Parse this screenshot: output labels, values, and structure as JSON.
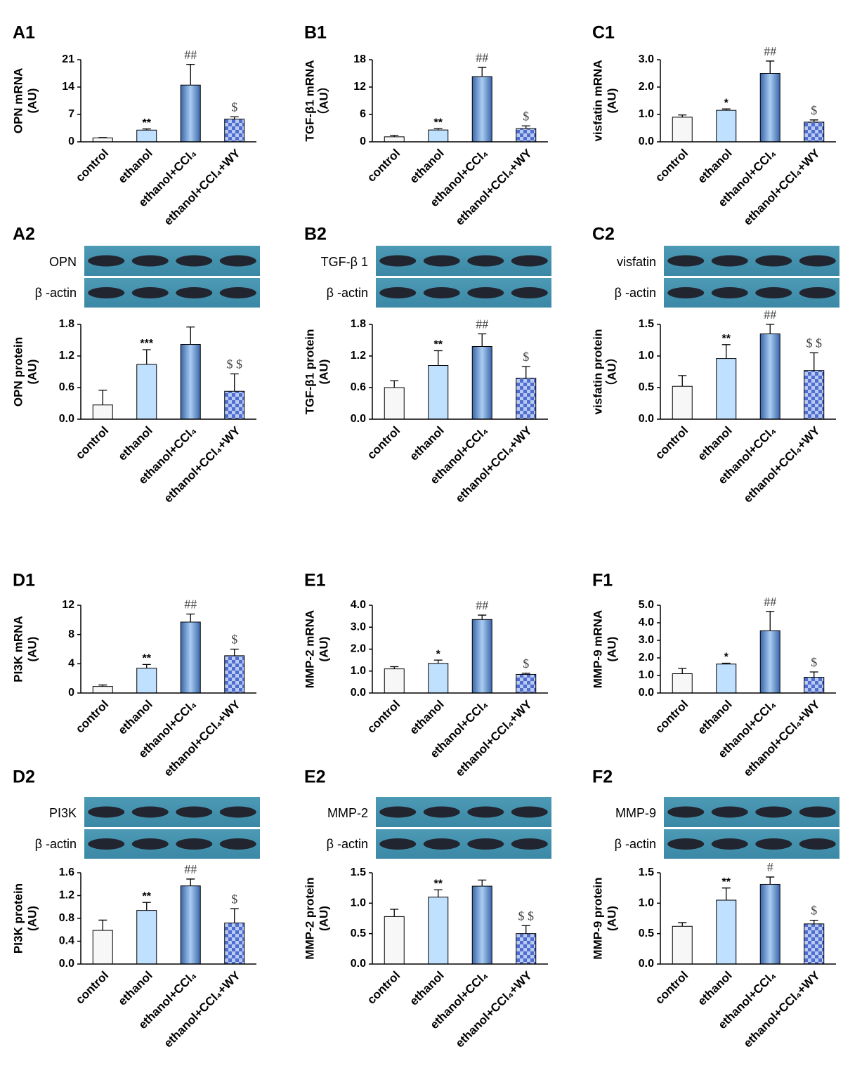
{
  "chart_data": [
    {
      "type": "bar",
      "panel": "A1",
      "ylabel": [
        "OPN  mRNA",
        "(AU)"
      ],
      "categories": [
        "control",
        "ethanol",
        "ethanol+CCl₄",
        "ethanol+CCl₄+WY"
      ],
      "values": [
        1,
        3,
        14.5,
        5.8
      ],
      "errors": [
        0.1,
        0.3,
        5.3,
        0.6
      ],
      "fills": [
        "plain-white",
        "plain-light-blue",
        "gradient-blue",
        "checker-blue"
      ],
      "ylim": [
        0,
        21
      ],
      "yticks": [
        0,
        7,
        14,
        21
      ],
      "annotations": [
        {
          "category": "ethanol",
          "text": "**"
        },
        {
          "category": "ethanol+CCl₄",
          "text": "##"
        },
        {
          "category": "ethanol+CCl₄+WY",
          "text": "$"
        }
      ]
    },
    {
      "type": "bar",
      "panel": "B1",
      "ylabel": [
        "TGF-β1 mRNA",
        "（AU）"
      ],
      "categories": [
        "control",
        "ethanol",
        "ethanol+CCl₄",
        "ethanol+CCl₄+WY"
      ],
      "values": [
        1.1,
        2.6,
        14.3,
        2.9
      ],
      "errors": [
        0.3,
        0.3,
        2,
        0.6
      ],
      "fills": [
        "plain-white",
        "plain-light-blue",
        "gradient-blue",
        "checker-blue"
      ],
      "ylim": [
        0,
        18
      ],
      "yticks": [
        0,
        6,
        12,
        18
      ],
      "annotations": [
        {
          "category": "ethanol",
          "text": "**"
        },
        {
          "category": "ethanol+CCl₄",
          "text": "##"
        },
        {
          "category": "ethanol+CCl₄+WY",
          "text": "$"
        }
      ]
    },
    {
      "type": "bar",
      "panel": "C1",
      "ylabel": [
        "visfatin  mRNA",
        "(AU)"
      ],
      "categories": [
        "control",
        "ethanol",
        "ethanol+CCl₄",
        "ethanol+CCl₄+WY"
      ],
      "values": [
        0.9,
        1.15,
        2.5,
        0.72
      ],
      "errors": [
        0.08,
        0.05,
        0.45,
        0.08
      ],
      "fills": [
        "plain-white",
        "plain-light-blue",
        "gradient-blue",
        "checker-blue"
      ],
      "ylim": [
        0,
        3
      ],
      "yticks": [
        {
          "value": 0,
          "label": "0.0"
        },
        {
          "value": 1,
          "label": "1.0"
        },
        {
          "value": 2,
          "label": "2.0"
        },
        {
          "value": 3,
          "label": "3.0"
        }
      ],
      "annotations": [
        {
          "category": "ethanol",
          "text": "*"
        },
        {
          "category": "ethanol+CCl₄",
          "text": "##"
        },
        {
          "category": "ethanol+CCl₄+WY",
          "text": "$"
        }
      ]
    },
    {
      "type": "bar",
      "panel": "A2",
      "blot": {
        "target": "OPN",
        "reference": "β -actin"
      },
      "ylabel": [
        "OPN  protein",
        "(AU)"
      ],
      "categories": [
        "control",
        "ethanol",
        "ethanol+CCl₄",
        "ethanol+CCl₄+WY"
      ],
      "values": [
        0.27,
        1.04,
        1.42,
        0.53
      ],
      "errors": [
        0.28,
        0.28,
        0.33,
        0.33
      ],
      "fills": [
        "plain-white",
        "plain-light-blue",
        "gradient-blue",
        "checker-blue"
      ],
      "ylim": [
        0,
        1.8
      ],
      "yticks": [
        {
          "value": 0,
          "label": "0.0"
        },
        0.6,
        1.2,
        1.8
      ],
      "annotations": [
        {
          "category": "ethanol",
          "text": "***"
        },
        {
          "category": "ethanol+CCl₄+WY",
          "text": "$ $"
        }
      ]
    },
    {
      "type": "bar",
      "panel": "B2",
      "blot": {
        "target": "TGF-β 1",
        "reference": "β -actin"
      },
      "ylabel": [
        "TGF-β1 protein",
        "(AU)"
      ],
      "categories": [
        "control",
        "ethanol",
        "ethanol+CCl₄",
        "ethanol+CCl₄+WY"
      ],
      "values": [
        0.6,
        1.02,
        1.38,
        0.78
      ],
      "errors": [
        0.13,
        0.28,
        0.24,
        0.22
      ],
      "fills": [
        "plain-white",
        "plain-light-blue",
        "gradient-blue",
        "checker-blue"
      ],
      "ylim": [
        0,
        1.8
      ],
      "yticks": [
        {
          "value": 0,
          "label": "0.0"
        },
        0.6,
        1.2,
        1.8
      ],
      "annotations": [
        {
          "category": "ethanol",
          "text": "**"
        },
        {
          "category": "ethanol+CCl₄",
          "text": "##"
        },
        {
          "category": "ethanol+CCl₄+WY",
          "text": "$"
        }
      ]
    },
    {
      "type": "bar",
      "panel": "C2",
      "blot": {
        "target": "visfatin",
        "reference": "β -actin"
      },
      "ylabel": [
        "visfatin  protein",
        "（AU）"
      ],
      "categories": [
        "control",
        "ethanol",
        "ethanol+CCl₄",
        "ethanol+CCl₄+WY"
      ],
      "values": [
        0.52,
        0.96,
        1.35,
        0.77
      ],
      "errors": [
        0.17,
        0.22,
        0.15,
        0.28
      ],
      "fills": [
        "plain-white",
        "plain-light-blue",
        "gradient-blue",
        "checker-blue"
      ],
      "ylim": [
        0,
        1.5
      ],
      "yticks": [
        {
          "value": 0,
          "label": "0.0"
        },
        0.5,
        {
          "value": 1,
          "label": "1.0"
        },
        1.5
      ],
      "annotations": [
        {
          "category": "ethanol",
          "text": "**"
        },
        {
          "category": "ethanol+CCl₄",
          "text": "##"
        },
        {
          "category": "ethanol+CCl₄+WY",
          "text": "$ $"
        }
      ]
    },
    {
      "type": "bar",
      "panel": "D1",
      "ylabel": [
        "PI3K  mRNA",
        "(AU)"
      ],
      "categories": [
        "control",
        "ethanol",
        "ethanol+CCl₄",
        "ethanol+CCl₄+WY"
      ],
      "values": [
        0.9,
        3.4,
        9.7,
        5.1
      ],
      "errors": [
        0.2,
        0.5,
        1.1,
        0.9
      ],
      "fills": [
        "plain-white",
        "plain-light-blue",
        "gradient-blue",
        "checker-blue"
      ],
      "ylim": [
        0,
        12
      ],
      "yticks": [
        0,
        4,
        8,
        12
      ],
      "annotations": [
        {
          "category": "ethanol",
          "text": "**"
        },
        {
          "category": "ethanol+CCl₄",
          "text": "##"
        },
        {
          "category": "ethanol+CCl₄+WY",
          "text": "$"
        }
      ]
    },
    {
      "type": "bar",
      "panel": "E1",
      "ylabel": [
        "MMP-2  mRNA",
        "(AU)"
      ],
      "categories": [
        "control",
        "ethanol",
        "ethanol+CCl₄",
        "ethanol+CCl₄+WY"
      ],
      "values": [
        1.1,
        1.35,
        3.35,
        0.85
      ],
      "errors": [
        0.1,
        0.15,
        0.2,
        0.05
      ],
      "fills": [
        "plain-white",
        "plain-light-blue",
        "gradient-blue",
        "checker-blue"
      ],
      "ylim": [
        0,
        4
      ],
      "yticks": [
        {
          "value": 0,
          "label": "0.0"
        },
        {
          "value": 1,
          "label": "1.0"
        },
        {
          "value": 2,
          "label": "2.0"
        },
        {
          "value": 3,
          "label": "3.0"
        },
        {
          "value": 4,
          "label": "4.0"
        }
      ],
      "annotations": [
        {
          "category": "ethanol",
          "text": "*"
        },
        {
          "category": "ethanol+CCl₄",
          "text": "##"
        },
        {
          "category": "ethanol+CCl₄+WY",
          "text": "$"
        }
      ]
    },
    {
      "type": "bar",
      "panel": "F1",
      "ylabel": [
        "MMP-9  mRNA",
        "(AU)"
      ],
      "categories": [
        "control",
        "ethanol",
        "ethanol+CCl₄",
        "ethanol+CCl₄+WY"
      ],
      "values": [
        1.1,
        1.65,
        3.55,
        0.9
      ],
      "errors": [
        0.3,
        0.05,
        1.1,
        0.3
      ],
      "fills": [
        "plain-white",
        "plain-light-blue",
        "gradient-blue",
        "checker-blue"
      ],
      "ylim": [
        0,
        5
      ],
      "yticks": [
        {
          "value": 0,
          "label": "0.0"
        },
        {
          "value": 1,
          "label": "1.0"
        },
        {
          "value": 2,
          "label": "2.0"
        },
        {
          "value": 3,
          "label": "3.0"
        },
        {
          "value": 4,
          "label": "4.0"
        },
        {
          "value": 5,
          "label": "5.0"
        }
      ],
      "annotations": [
        {
          "category": "ethanol",
          "text": "*"
        },
        {
          "category": "ethanol+CCl₄",
          "text": "##"
        },
        {
          "category": "ethanol+CCl₄+WY",
          "text": "$"
        }
      ]
    },
    {
      "type": "bar",
      "panel": "D2",
      "blot": {
        "target": "PI3K",
        "reference": "β -actin"
      },
      "ylabel": [
        "PI3K  protein",
        "(AU)"
      ],
      "categories": [
        "control",
        "ethanol",
        "ethanol+CCl₄",
        "ethanol+CCl₄+WY"
      ],
      "values": [
        0.59,
        0.94,
        1.37,
        0.72
      ],
      "errors": [
        0.18,
        0.14,
        0.12,
        0.25
      ],
      "fills": [
        "plain-white",
        "plain-light-blue",
        "gradient-blue",
        "checker-blue"
      ],
      "ylim": [
        0,
        1.6
      ],
      "yticks": [
        {
          "value": 0,
          "label": "0.0"
        },
        0.4,
        0.8,
        1.2,
        1.6
      ],
      "annotations": [
        {
          "category": "ethanol",
          "text": "**"
        },
        {
          "category": "ethanol+CCl₄",
          "text": "##"
        },
        {
          "category": "ethanol+CCl₄+WY",
          "text": "$"
        }
      ]
    },
    {
      "type": "bar",
      "panel": "E2",
      "blot": {
        "target": "MMP-2",
        "reference": "β -actin"
      },
      "ylabel": [
        "MMP-2  protein",
        "(AU)"
      ],
      "categories": [
        "control",
        "ethanol",
        "ethanol+CCl₄",
        "ethanol+CCl₄+WY"
      ],
      "values": [
        0.78,
        1.1,
        1.28,
        0.5
      ],
      "errors": [
        0.12,
        0.12,
        0.1,
        0.13
      ],
      "fills": [
        "plain-white",
        "plain-light-blue",
        "gradient-blue",
        "checker-blue"
      ],
      "ylim": [
        0,
        1.5
      ],
      "yticks": [
        {
          "value": 0,
          "label": "0.0"
        },
        0.5,
        {
          "value": 1,
          "label": "1.0"
        },
        1.5
      ],
      "annotations": [
        {
          "category": "ethanol",
          "text": "**"
        },
        {
          "category": "ethanol+CCl₄+WY",
          "text": "$ $"
        }
      ]
    },
    {
      "type": "bar",
      "panel": "F2",
      "blot": {
        "target": "MMP-9",
        "reference": "β -actin"
      },
      "ylabel": [
        "MMP-9  protein",
        "(AU)"
      ],
      "categories": [
        "control",
        "ethanol",
        "ethanol+CCl₄",
        "ethanol+CCl₄+WY"
      ],
      "values": [
        0.62,
        1.05,
        1.31,
        0.66
      ],
      "errors": [
        0.06,
        0.2,
        0.12,
        0.06
      ],
      "fills": [
        "plain-white",
        "plain-light-blue",
        "gradient-blue",
        "checker-blue"
      ],
      "ylim": [
        0,
        1.5
      ],
      "yticks": [
        {
          "value": 0,
          "label": "0.0"
        },
        0.5,
        {
          "value": 1,
          "label": "1.0"
        },
        1.5
      ],
      "annotations": [
        {
          "category": "ethanol",
          "text": "**"
        },
        {
          "category": "ethanol+CCl₄",
          "text": "#"
        },
        {
          "category": "ethanol+CCl₄+WY",
          "text": "$"
        }
      ]
    }
  ]
}
